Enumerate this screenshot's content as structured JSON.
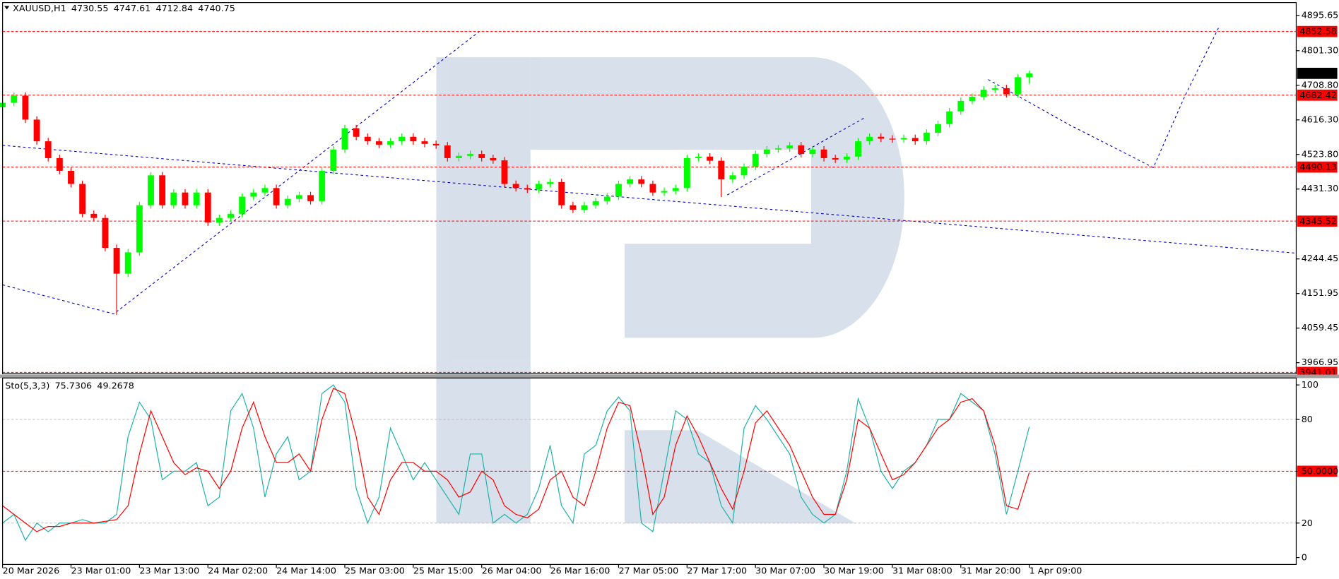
{
  "chart_data": [
    {
      "type": "candlestick",
      "title": "XAUUSD,H1",
      "xlim": [
        0,
        113.4
      ],
      "ylim": [
        3937.4,
        4930.0
      ],
      "yticks": [
        4895.65,
        {
          "value": 4801.3,
          "label": "4801.30"
        },
        {
          "value": 4708.8,
          "label": "4708.80"
        },
        {
          "value": 4616.3,
          "label": "4616.30"
        },
        {
          "value": 4523.8,
          "label": "4523.80"
        },
        {
          "value": 4431.3,
          "label": "4431.30"
        },
        4244.45,
        4151.95,
        4059.45,
        3966.95
      ],
      "price_levels": [
        4852.58,
        4682.42,
        4490.13,
        4345.52,
        3941.01
      ],
      "level_color": "#ff0000",
      "up_color": "#00ff00",
      "down_color": "#ff0000",
      "open": [
        4650,
        4662,
        4681,
        4617,
        4559,
        4514,
        4480,
        4445,
        4365,
        4354,
        4274,
        4205,
        4262,
        4388,
        4468,
        4388,
        4422,
        4388,
        4422,
        4342,
        4354,
        4365,
        4411,
        4422,
        4434,
        4388,
        4405,
        4415,
        4399,
        4480,
        4537,
        4594,
        4571,
        4559,
        4550,
        4559,
        4571,
        4559,
        4552,
        4548,
        4514,
        4520,
        4525,
        4514,
        4508,
        4445,
        4434,
        4430,
        4445,
        4450,
        4388,
        4376,
        4388,
        4399,
        4411,
        4445,
        4457,
        4445,
        4422,
        4426,
        4434,
        4514,
        4518,
        4507,
        4457,
        4468,
        4491,
        4525,
        4537,
        4540,
        4548,
        4525,
        4537,
        4514,
        4510,
        4518,
        4559,
        4571,
        4566,
        4564,
        4568,
        4559,
        4582,
        4605,
        4639,
        4667,
        4678,
        4697,
        4701,
        4685,
        4730.55
      ],
      "high": [
        4671,
        4690,
        4690,
        4626,
        4568,
        4523,
        4489,
        4454,
        4374,
        4363,
        4283,
        4271,
        4397,
        4477,
        4477,
        4431,
        4431,
        4431,
        4431,
        4363,
        4374,
        4420,
        4431,
        4443,
        4443,
        4414,
        4424,
        4424,
        4489,
        4546,
        4603,
        4603,
        4580,
        4568,
        4568,
        4580,
        4580,
        4568,
        4561,
        4557,
        4529,
        4534,
        4534,
        4523,
        4517,
        4454,
        4443,
        4454,
        4459,
        4459,
        4397,
        4397,
        4408,
        4420,
        4454,
        4466,
        4466,
        4454,
        4435,
        4443,
        4523,
        4527,
        4527,
        4516,
        4477,
        4500,
        4534,
        4546,
        4549,
        4557,
        4557,
        4546,
        4546,
        4523,
        4527,
        4568,
        4580,
        4580,
        4575,
        4577,
        4577,
        4591,
        4614,
        4648,
        4676,
        4687,
        4706,
        4710,
        4710,
        4739,
        4747.61
      ],
      "low": [
        4641,
        4653,
        4608,
        4550,
        4505,
        4471,
        4436,
        4356,
        4345,
        4265,
        4095,
        4196,
        4253,
        4379,
        4379,
        4379,
        4379,
        4379,
        4333,
        4333,
        4345,
        4356,
        4402,
        4413,
        4379,
        4379,
        4396,
        4390,
        4390,
        4471,
        4528,
        4562,
        4550,
        4541,
        4541,
        4550,
        4550,
        4543,
        4539,
        4505,
        4505,
        4511,
        4505,
        4499,
        4436,
        4425,
        4421,
        4421,
        4436,
        4379,
        4367,
        4367,
        4379,
        4390,
        4402,
        4436,
        4436,
        4413,
        4413,
        4417,
        4425,
        4505,
        4498,
        4410,
        4448,
        4459,
        4482,
        4516,
        4528,
        4531,
        4516,
        4516,
        4505,
        4501,
        4501,
        4509,
        4550,
        4557,
        4555,
        4555,
        4550,
        4550,
        4573,
        4596,
        4630,
        4658,
        4669,
        4688,
        4676,
        4676,
        4712.84
      ],
      "close": [
        4662,
        4681,
        4617,
        4559,
        4514,
        4480,
        4445,
        4365,
        4354,
        4274,
        4205,
        4262,
        4388,
        4468,
        4388,
        4422,
        4388,
        4422,
        4342,
        4354,
        4365,
        4411,
        4422,
        4434,
        4388,
        4405,
        4415,
        4399,
        4480,
        4537,
        4594,
        4571,
        4559,
        4550,
        4559,
        4571,
        4559,
        4552,
        4548,
        4514,
        4520,
        4525,
        4514,
        4508,
        4445,
        4434,
        4430,
        4445,
        4450,
        4388,
        4376,
        4388,
        4399,
        4411,
        4445,
        4457,
        4445,
        4422,
        4426,
        4434,
        4514,
        4518,
        4507,
        4457,
        4468,
        4491,
        4525,
        4537,
        4540,
        4548,
        4525,
        4537,
        4514,
        4510,
        4518,
        4559,
        4571,
        4566,
        4564,
        4568,
        4559,
        4582,
        4605,
        4639,
        4667,
        4678,
        4697,
        4701,
        4685,
        4730.55,
        4740.75
      ]
    },
    {
      "type": "line",
      "title": "Sto(5,3,3)",
      "xlim": [
        0,
        113.4
      ],
      "xticks": [
        {
          "value": 0,
          "label": "20 Mar 2026"
        },
        {
          "value": 6,
          "label": "23 Mar 01:00"
        },
        {
          "value": 12,
          "label": "23 Mar 13:00"
        },
        {
          "value": 18,
          "label": "24 Mar 02:00"
        },
        {
          "value": 24,
          "label": "24 Mar 14:00"
        },
        {
          "value": 30,
          "label": "25 Mar 03:00"
        },
        {
          "value": 36,
          "label": "25 Mar 15:00"
        },
        {
          "value": 42,
          "label": "26 Mar 04:00"
        },
        {
          "value": 48,
          "label": "26 Mar 16:00"
        },
        {
          "value": 54,
          "label": "27 Mar 05:00"
        },
        {
          "value": 60,
          "label": "27 Mar 17:00"
        },
        {
          "value": 66,
          "label": "30 Mar 07:00"
        },
        {
          "value": 72,
          "label": "30 Mar 19:00"
        },
        {
          "value": 78,
          "label": "31 Mar 08:00"
        },
        {
          "value": 84,
          "label": "31 Mar 20:00"
        },
        {
          "value": 90,
          "label": "1 Apr 09:00"
        }
      ],
      "ylim": [
        -4,
        104
      ],
      "yticks": [
        100,
        80,
        {
          "value": 50,
          "label": "50.0000"
        },
        20,
        0
      ],
      "levels": [
        80,
        50,
        20
      ],
      "level_colors": [
        "#c0c0c0",
        "#ff0000",
        "#c0c0c0"
      ],
      "series": [
        {
          "color": "#20b2aa",
          "values": [
            20,
            25,
            10,
            20,
            15,
            20,
            20,
            22,
            20,
            20,
            25,
            70,
            90,
            80,
            45,
            50,
            50,
            55,
            30,
            35,
            85,
            95,
            75,
            35,
            60,
            70,
            45,
            50,
            95,
            100,
            90,
            40,
            20,
            35,
            75,
            60,
            45,
            55,
            45,
            35,
            25,
            60,
            60,
            20,
            25,
            20,
            25,
            40,
            65,
            30,
            20,
            60,
            65,
            85,
            93,
            85,
            20,
            15,
            50,
            85,
            80,
            60,
            55,
            30,
            20,
            75,
            88,
            80,
            70,
            60,
            35,
            25,
            20,
            25,
            50,
            92,
            75,
            50,
            40,
            50,
            55,
            65,
            80,
            80,
            95,
            90,
            85,
            60,
            25,
            50,
            75.7306
          ]
        },
        {
          "color": "#ff0000",
          "values": [
            30,
            25,
            20,
            15,
            18,
            18,
            20,
            20,
            20,
            21,
            22,
            30,
            60,
            85,
            70,
            55,
            48,
            52,
            50,
            40,
            50,
            75,
            90,
            70,
            55,
            55,
            60,
            50,
            80,
            98,
            95,
            70,
            35,
            25,
            45,
            55,
            55,
            50,
            50,
            45,
            35,
            38,
            50,
            45,
            30,
            25,
            23,
            28,
            45,
            50,
            35,
            30,
            50,
            75,
            90,
            88,
            60,
            25,
            35,
            65,
            82,
            70,
            55,
            40,
            28,
            50,
            78,
            85,
            75,
            65,
            50,
            35,
            25,
            25,
            45,
            80,
            75,
            60,
            45,
            48,
            55,
            65,
            75,
            80,
            90,
            92,
            85,
            65,
            30,
            28,
            49.2678
          ]
        }
      ]
    }
  ]
}
